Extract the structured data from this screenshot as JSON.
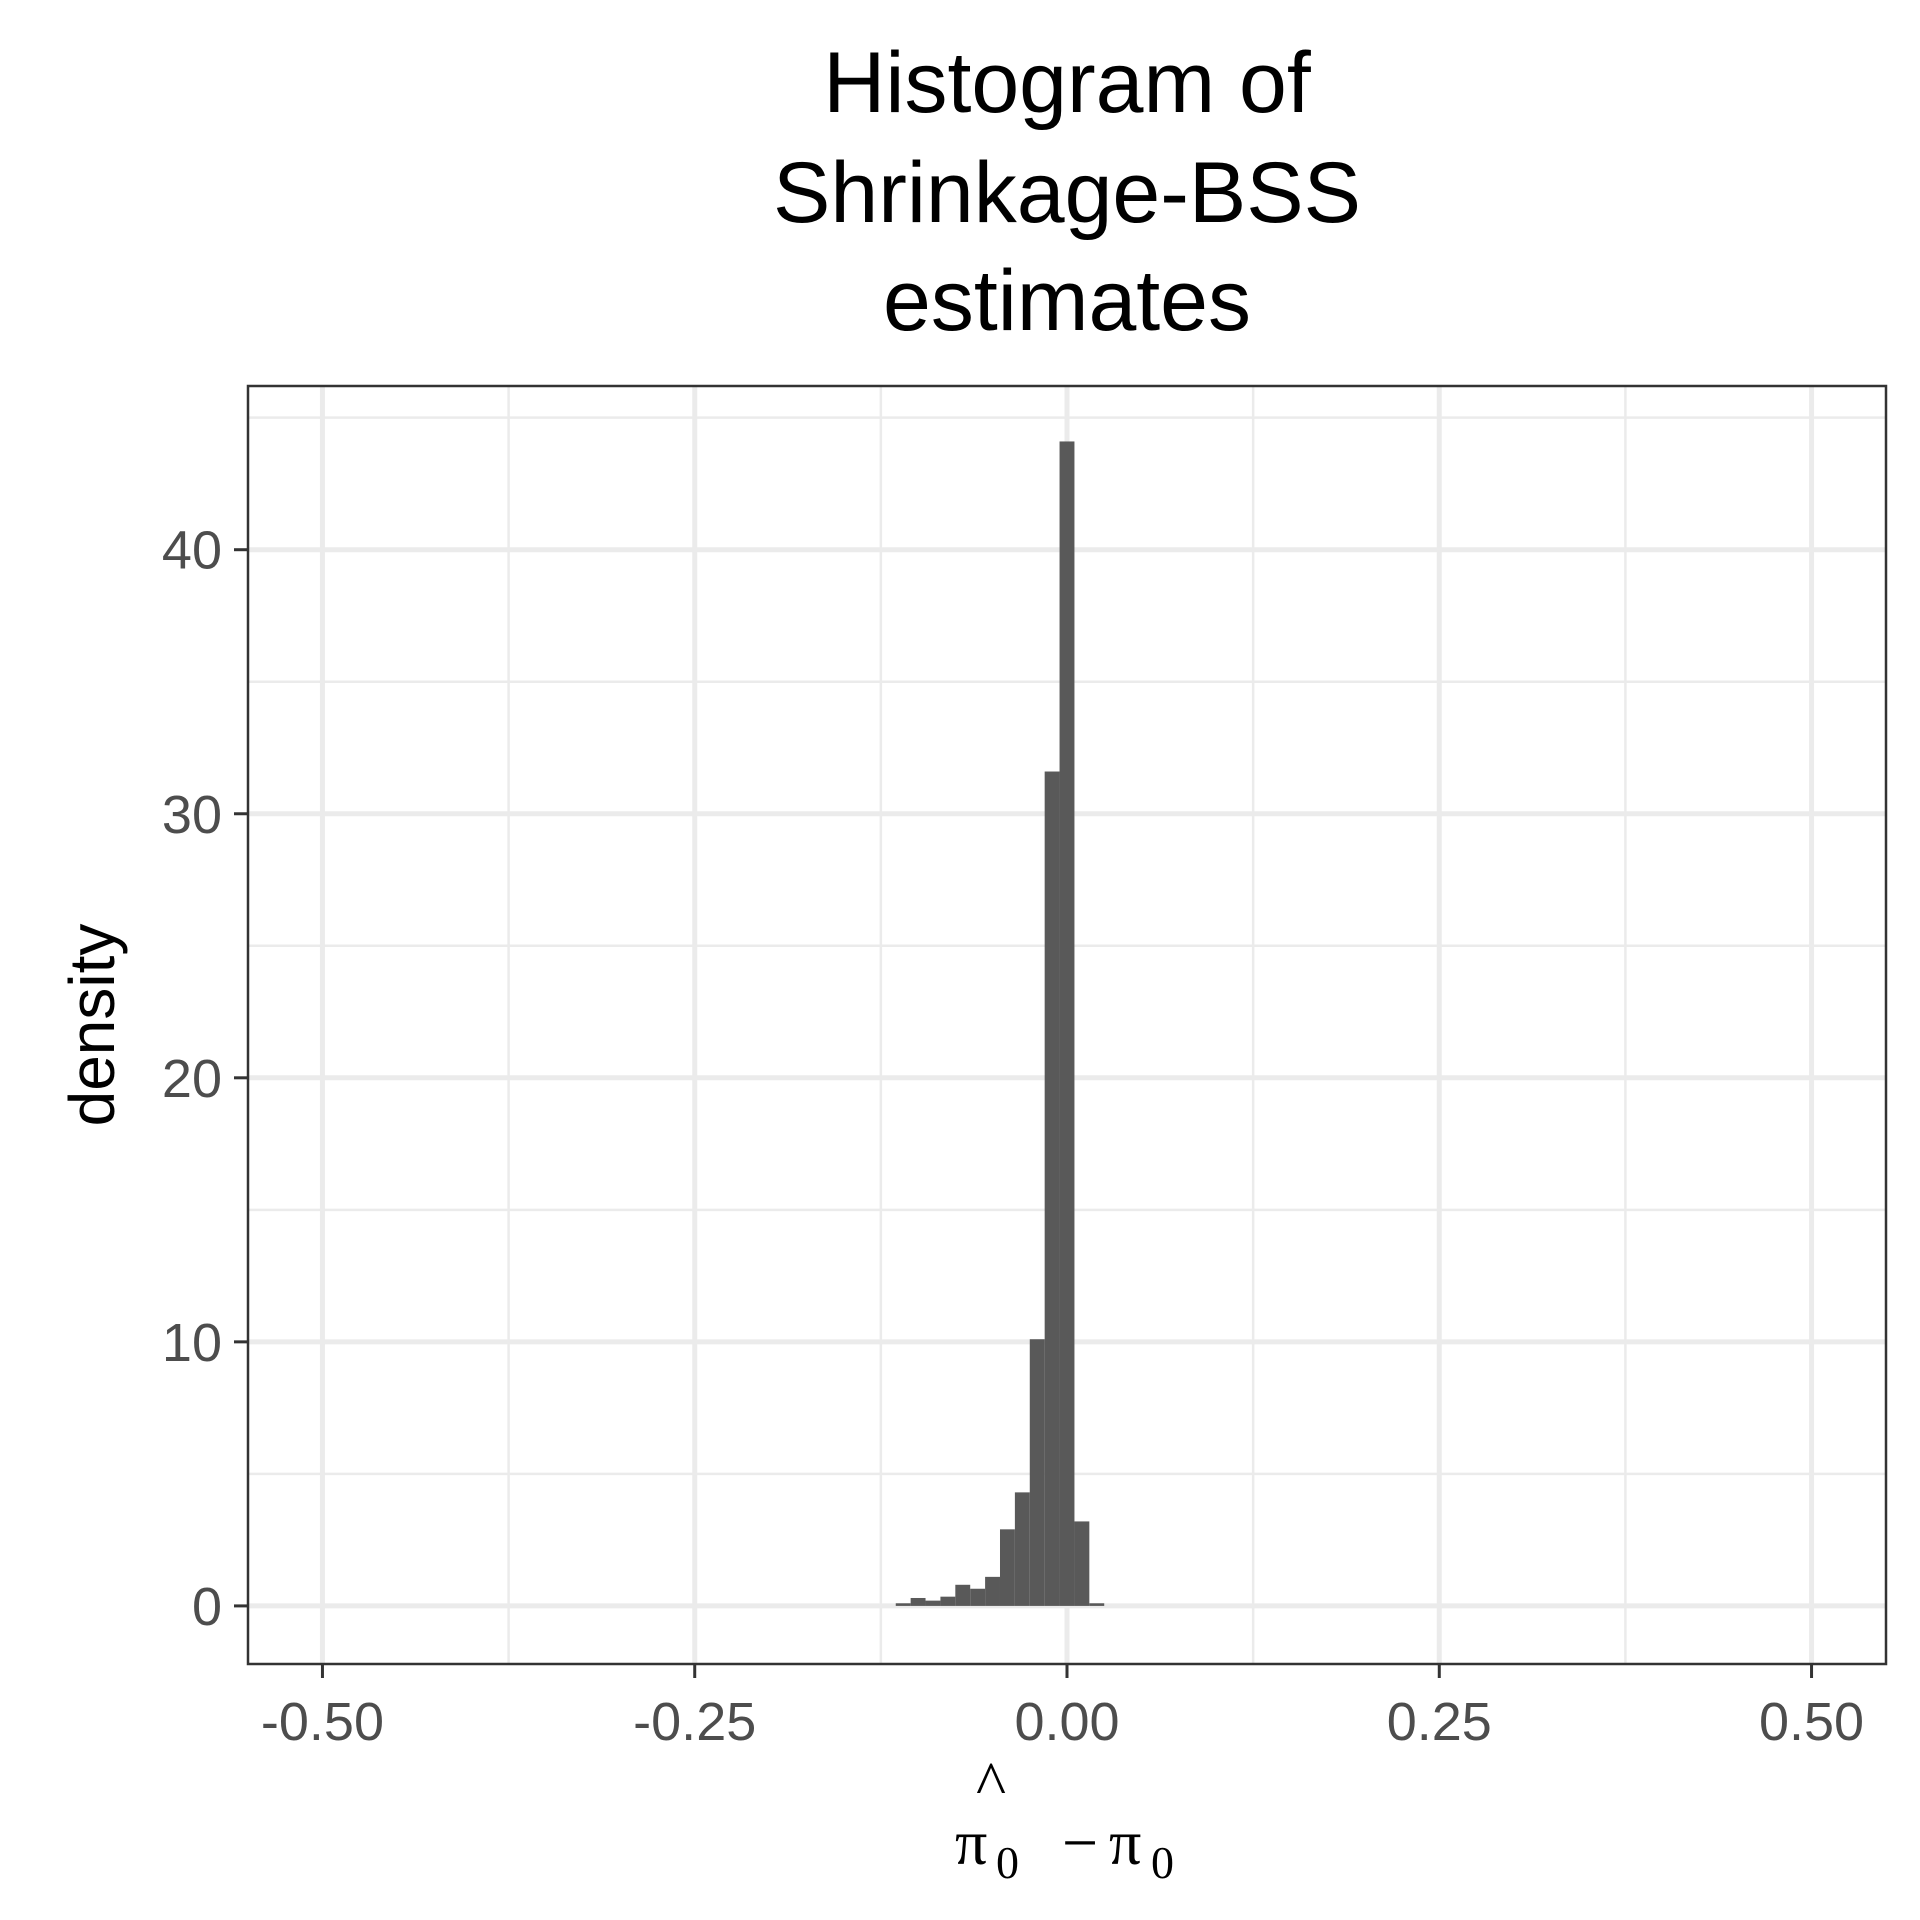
{
  "chart_data": {
    "type": "bar",
    "title": [
      "Histogram of",
      "Shrinkage-BSS",
      "estimates"
    ],
    "ylabel": "density",
    "xlabel": {
      "hat_symbol": "^",
      "first_symbol": "π",
      "first_subscript": "0",
      "operator": "−",
      "second_symbol": "π",
      "second_subscript": "0"
    },
    "xlim": [
      -0.55,
      0.55
    ],
    "ylim": [
      -2.2,
      46.2
    ],
    "x_ticks": [
      -0.5,
      -0.25,
      0.0,
      0.25,
      0.5
    ],
    "x_tick_labels": [
      "-0.50",
      "-0.25",
      "0.00",
      "0.25",
      "0.50"
    ],
    "x_minor_ticks": [
      -0.375,
      -0.125,
      0.125,
      0.375
    ],
    "y_ticks": [
      0,
      10,
      20,
      30,
      40
    ],
    "y_tick_labels": [
      "0",
      "10",
      "20",
      "30",
      "40"
    ],
    "y_minor_ticks": [
      5,
      15,
      25,
      35,
      45
    ],
    "grid": true,
    "bar_color": "#595959",
    "bin_width": 0.01,
    "bins": [
      {
        "x_start": -0.115,
        "x_end": -0.105,
        "density": 0.1
      },
      {
        "x_start": -0.105,
        "x_end": -0.095,
        "density": 0.3
      },
      {
        "x_start": -0.095,
        "x_end": -0.085,
        "density": 0.2
      },
      {
        "x_start": -0.085,
        "x_end": -0.075,
        "density": 0.35
      },
      {
        "x_start": -0.075,
        "x_end": -0.065,
        "density": 0.8
      },
      {
        "x_start": -0.065,
        "x_end": -0.055,
        "density": 0.65
      },
      {
        "x_start": -0.055,
        "x_end": -0.045,
        "density": 1.1
      },
      {
        "x_start": -0.045,
        "x_end": -0.035,
        "density": 2.9
      },
      {
        "x_start": -0.035,
        "x_end": -0.025,
        "density": 4.3
      },
      {
        "x_start": -0.025,
        "x_end": -0.015,
        "density": 10.1
      },
      {
        "x_start": -0.015,
        "x_end": -0.005,
        "density": 31.6
      },
      {
        "x_start": -0.005,
        "x_end": 0.005,
        "density": 44.1
      },
      {
        "x_start": 0.005,
        "x_end": 0.015,
        "density": 3.2
      },
      {
        "x_start": 0.015,
        "x_end": 0.025,
        "density": 0.1
      }
    ]
  }
}
